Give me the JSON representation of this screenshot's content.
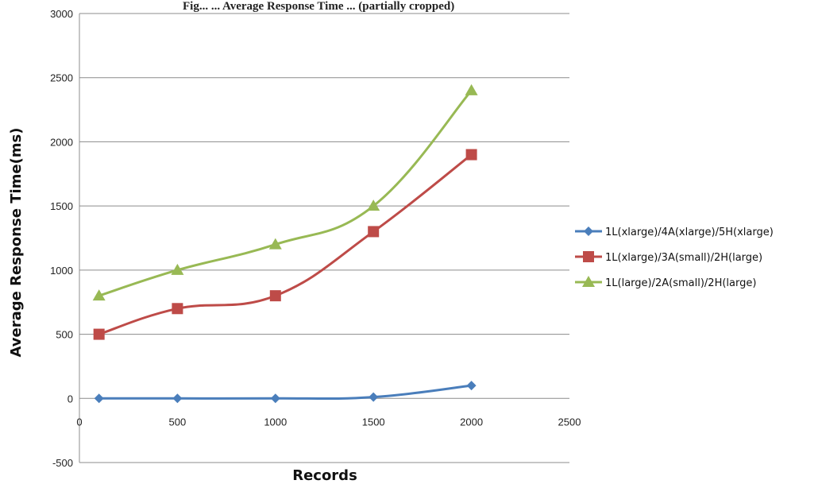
{
  "caption": "Fig... ... Average Response Time ... (partially cropped)",
  "chart_data": {
    "type": "line",
    "xlabel": "Records",
    "ylabel": "Average Response Time(ms)",
    "xlim": [
      0,
      2500
    ],
    "ylim": [
      -500,
      3000
    ],
    "x_ticks": [
      0,
      500,
      1000,
      1500,
      2000,
      2500
    ],
    "y_ticks": [
      -500,
      0,
      500,
      1000,
      1500,
      2000,
      2500,
      3000
    ],
    "grid": "horizontal",
    "legend_position": "right",
    "x": [
      100,
      500,
      1000,
      1500,
      2000
    ],
    "series": [
      {
        "name": "1L(xlarge)/4A(xlarge)/5H(xlarge)",
        "color": "#4a7ebb",
        "marker": "diamond",
        "values": [
          0,
          0,
          0,
          10,
          100
        ]
      },
      {
        "name": "1L(xlarge)/3A(small)/2H(large)",
        "color": "#be4b48",
        "marker": "square",
        "values": [
          500,
          700,
          800,
          1300,
          1900
        ]
      },
      {
        "name": "1L(large)/2A(small)/2H(large)",
        "color": "#98b954",
        "marker": "triangle",
        "values": [
          800,
          1000,
          1200,
          1500,
          2400
        ]
      }
    ]
  }
}
